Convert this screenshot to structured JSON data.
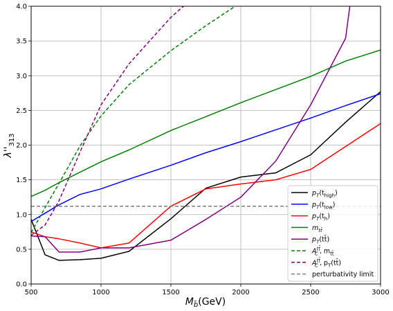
{
  "chart_data": {
    "type": "line",
    "xlabel_main": "M",
    "xlabel_sub": "b̃",
    "xlabel_unit": "(GeV)",
    "ylabel_main": "λ''",
    "ylabel_sub": "313",
    "xlim": [
      500,
      3000
    ],
    "ylim": [
      0.0,
      4.0
    ],
    "x_ticks": [
      500,
      1000,
      1500,
      2000,
      2500,
      3000
    ],
    "y_ticks": [
      0.0,
      0.5,
      1.0,
      1.5,
      2.0,
      2.5,
      3.0,
      3.5,
      4.0
    ],
    "x_tick_labels": [
      "500",
      "1000",
      "1500",
      "2000",
      "2500",
      "3000"
    ],
    "y_tick_labels": [
      "0.0",
      "0.5",
      "1.0",
      "1.5",
      "2.0",
      "2.5",
      "3.0",
      "3.5",
      "4.0"
    ],
    "grid": true,
    "legend_position": "lower-right",
    "series": [
      {
        "name": "p_T(t_high)",
        "legend_main": "p",
        "legend_sub": "T",
        "legend_rest": "(t",
        "legend_rest_sub": "high",
        "legend_close": ")",
        "color": "#000000",
        "dashed": false,
        "x": [
          500,
          600,
          700,
          850,
          1000,
          1200,
          1500,
          1750,
          2000,
          2250,
          2500,
          2750,
          3000
        ],
        "y": [
          0.93,
          0.42,
          0.34,
          0.35,
          0.37,
          0.47,
          0.94,
          1.38,
          1.54,
          1.6,
          1.86,
          2.33,
          2.77
        ]
      },
      {
        "name": "p_T(t_low)",
        "legend_main": "p",
        "legend_sub": "T",
        "legend_rest": "(t",
        "legend_rest_sub": "low",
        "legend_close": ")",
        "color": "#0000ff",
        "dashed": false,
        "x": [
          500,
          700,
          850,
          1000,
          1200,
          1500,
          1750,
          2000,
          2250,
          2500,
          2750,
          3000
        ],
        "y": [
          0.9,
          1.14,
          1.29,
          1.37,
          1.51,
          1.71,
          1.89,
          2.05,
          2.22,
          2.39,
          2.57,
          2.74
        ]
      },
      {
        "name": "p_T(t_h)",
        "legend_main": "p",
        "legend_sub": "T",
        "legend_rest": "(t",
        "legend_rest_sub": "h",
        "legend_close": ")",
        "color": "#ff0000",
        "dashed": false,
        "x": [
          500,
          600,
          700,
          850,
          1000,
          1200,
          1500,
          1750,
          2000,
          2250,
          2500,
          2750,
          3000
        ],
        "y": [
          0.75,
          0.68,
          0.65,
          0.59,
          0.52,
          0.59,
          1.12,
          1.37,
          1.44,
          1.5,
          1.65,
          1.98,
          2.31
        ]
      },
      {
        "name": "m_tt̄",
        "legend_main": "m",
        "legend_sub": "tt̄",
        "legend_rest": "",
        "legend_rest_sub": "",
        "legend_close": "",
        "color": "#008000",
        "dashed": false,
        "x": [
          500,
          600,
          700,
          850,
          1000,
          1200,
          1500,
          1750,
          2000,
          2250,
          2500,
          2750,
          3000
        ],
        "y": [
          1.26,
          1.35,
          1.46,
          1.61,
          1.76,
          1.93,
          2.21,
          2.41,
          2.61,
          2.8,
          2.99,
          3.21,
          3.37
        ]
      },
      {
        "name": "p_T(tt̄)",
        "legend_main": "p",
        "legend_sub": "T",
        "legend_rest": "(tt̄)",
        "legend_rest_sub": "",
        "legend_close": "",
        "color": "#800080",
        "dashed": false,
        "x": [
          500,
          600,
          700,
          850,
          1000,
          1200,
          1500,
          1750,
          2000,
          2250,
          2500,
          2750,
          2780
        ],
        "y": [
          0.69,
          0.68,
          0.46,
          0.46,
          0.52,
          0.52,
          0.63,
          0.93,
          1.25,
          1.77,
          2.58,
          3.54,
          4.0
        ]
      },
      {
        "name": "A_C^tt̄, m_tt̄",
        "legend_main": "A",
        "legend_sub": "C",
        "legend_sup": "tt̄",
        "legend_rest": ", m",
        "legend_rest_sub": "tt̄",
        "legend_close": "",
        "color": "#008000",
        "dashed": true,
        "x": [
          500,
          600,
          700,
          850,
          1000,
          1200,
          1500,
          1750,
          1960
        ],
        "y": [
          0.74,
          1.1,
          1.45,
          1.99,
          2.42,
          2.87,
          3.36,
          3.72,
          4.0
        ]
      },
      {
        "name": "A_C^tt̄, p_T(tt̄)",
        "legend_main": "A",
        "legend_sub": "C",
        "legend_sup": "tt̄",
        "legend_rest": ", p",
        "legend_rest_sub": "T",
        "legend_close": "(tt̄)",
        "color": "#800080",
        "dashed": true,
        "x": [
          500,
          600,
          700,
          850,
          1000,
          1200,
          1500,
          1590
        ],
        "y": [
          0.7,
          0.85,
          1.2,
          1.9,
          2.58,
          3.17,
          3.84,
          4.0
        ]
      },
      {
        "name": "perturbativity limit",
        "legend_main": "perturbativity limit",
        "legend_sub": "",
        "legend_rest": "",
        "legend_rest_sub": "",
        "legend_close": "",
        "color": "#808080",
        "dashed": true,
        "x": [
          500,
          3000
        ],
        "y": [
          1.12,
          1.12
        ]
      }
    ]
  }
}
